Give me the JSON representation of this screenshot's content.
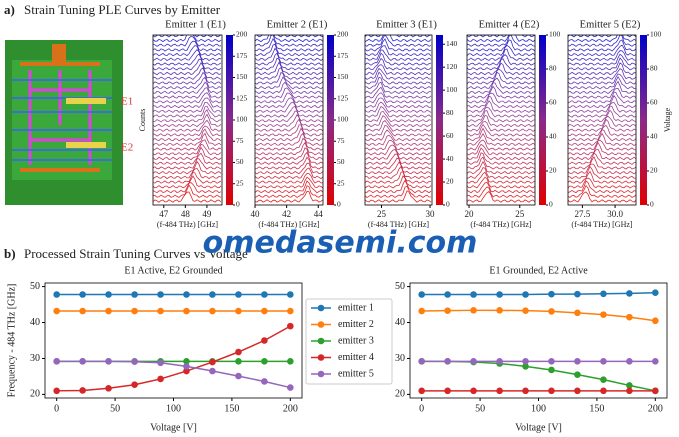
{
  "panel_a": {
    "label": "a)",
    "title": "Strain Tuning PLE Curves by Emitter",
    "device_labels": [
      "E1",
      "E2"
    ],
    "counts_label": "Counts",
    "voltage_label": "Voltage"
  },
  "watermark": "omedasemi.com",
  "panel_b": {
    "label": "b)",
    "title": "Processed Strain Tuning Curves vs Voltage"
  },
  "chart_data": [
    {
      "type": "waterfall",
      "title": "Emitter 1 (E1)",
      "xlabel": "(f-484 THz) [GHz]",
      "xlim": [
        46.5,
        49.7
      ],
      "xticks": [
        47,
        48,
        49
      ],
      "clim": [
        0,
        200
      ],
      "cticks": [
        0,
        25,
        50,
        75,
        100,
        125,
        150,
        175,
        200
      ]
    },
    {
      "type": "waterfall",
      "title": "Emitter 2 (E1)",
      "xlabel": "(f-484 THz) [GHz]",
      "xlim": [
        40,
        44.3
      ],
      "xticks": [
        40,
        42,
        44
      ],
      "clim": [
        0,
        200
      ],
      "cticks": [
        0,
        25,
        50,
        75,
        100,
        125,
        150,
        175,
        200
      ]
    },
    {
      "type": "waterfall",
      "title": "Emitter 3 (E1)",
      "xlabel": "(f-484 THz) [GHz]",
      "xlim": [
        23.3,
        30.2
      ],
      "xticks": [
        25,
        30
      ],
      "clim": [
        0,
        148
      ],
      "cticks": [
        0,
        20,
        40,
        60,
        80,
        100,
        120,
        140
      ]
    },
    {
      "type": "waterfall",
      "title": "Emitter 4 (E2)",
      "xlabel": "(f-484 THz) [GHz]",
      "xlim": [
        19.8,
        26.5
      ],
      "xticks": [
        20,
        25
      ],
      "clim": [
        0,
        100
      ],
      "cticks": [
        0,
        20,
        40,
        60,
        80,
        100
      ]
    },
    {
      "type": "waterfall",
      "title": "Emitter 5 (E2)",
      "xlabel": "(f-484 THz) [GHz]",
      "xlim": [
        26.4,
        31.6
      ],
      "xticks": [
        27.5,
        {
          "value": 30,
          "label": "30.0"
        }
      ],
      "clim": [
        0,
        100
      ],
      "cticks": [
        0,
        20,
        40,
        60,
        80,
        100
      ]
    },
    {
      "type": "line",
      "title": "E1 Active, E2 Grounded",
      "xlabel": "Voltage [V]",
      "ylabel": "Frequency - 484 THz [GHz]",
      "legend": "right",
      "x": [
        0,
        22.2,
        44.4,
        66.7,
        88.9,
        111.1,
        133.3,
        155.6,
        177.8,
        200
      ],
      "xlim": [
        -10,
        210
      ],
      "xticks": [
        0,
        50,
        100,
        150,
        200
      ],
      "ylim": [
        19,
        51
      ],
      "yticks": [
        20,
        30,
        40,
        50
      ],
      "series": [
        {
          "name": "emitter 1",
          "color": "#1f77b4",
          "values": [
            47.8,
            47.8,
            47.8,
            47.8,
            47.8,
            47.8,
            47.8,
            47.8,
            47.8,
            47.8
          ]
        },
        {
          "name": "emitter 2",
          "color": "#ff7f0e",
          "values": [
            43.2,
            43.2,
            43.2,
            43.2,
            43.2,
            43.2,
            43.2,
            43.2,
            43.2,
            43.2
          ]
        },
        {
          "name": "emitter 3",
          "color": "#2ca02c",
          "values": [
            29.2,
            29.2,
            29.2,
            29.2,
            29.2,
            29.2,
            29.2,
            29.2,
            29.2,
            29.2
          ]
        },
        {
          "name": "emitter 4",
          "color": "#d62728",
          "values": [
            21,
            21.1,
            21.7,
            22.7,
            24.3,
            26.5,
            29,
            31.8,
            35,
            39
          ]
        },
        {
          "name": "emitter 5",
          "color": "#9467bd",
          "values": [
            29.2,
            29.2,
            29.2,
            29.1,
            28.8,
            27.8,
            26.5,
            25.1,
            23.6,
            21.9
          ]
        }
      ]
    },
    {
      "type": "line",
      "title": "E1 Grounded, E2 Active",
      "xlabel": "Voltage [V]",
      "x": [
        0,
        22.2,
        44.4,
        66.7,
        88.9,
        111.1,
        133.3,
        155.6,
        177.8,
        200
      ],
      "xlim": [
        -10,
        210
      ],
      "xticks": [
        0,
        50,
        100,
        150,
        200
      ],
      "ylim": [
        19,
        51
      ],
      "yticks": [
        20,
        30,
        40,
        50
      ],
      "series": [
        {
          "name": "emitter 1",
          "color": "#1f77b4",
          "values": [
            47.8,
            47.8,
            47.8,
            47.8,
            47.8,
            47.9,
            47.9,
            48,
            48.1,
            48.3
          ]
        },
        {
          "name": "emitter 2",
          "color": "#ff7f0e",
          "values": [
            43.2,
            43.3,
            43.4,
            43.4,
            43.3,
            43.1,
            42.7,
            42.2,
            41.5,
            40.5
          ]
        },
        {
          "name": "emitter 3",
          "color": "#2ca02c",
          "values": [
            29.2,
            29.2,
            29,
            28.6,
            27.8,
            26.8,
            25.5,
            24.1,
            22.5,
            21
          ]
        },
        {
          "name": "emitter 4",
          "color": "#d62728",
          "values": [
            21,
            21,
            21,
            21,
            21,
            21,
            21,
            21,
            21,
            21
          ]
        },
        {
          "name": "emitter 5",
          "color": "#9467bd",
          "values": [
            29.2,
            29.2,
            29.2,
            29.2,
            29.2,
            29.2,
            29.2,
            29.2,
            29.2,
            29.2
          ]
        }
      ]
    }
  ]
}
